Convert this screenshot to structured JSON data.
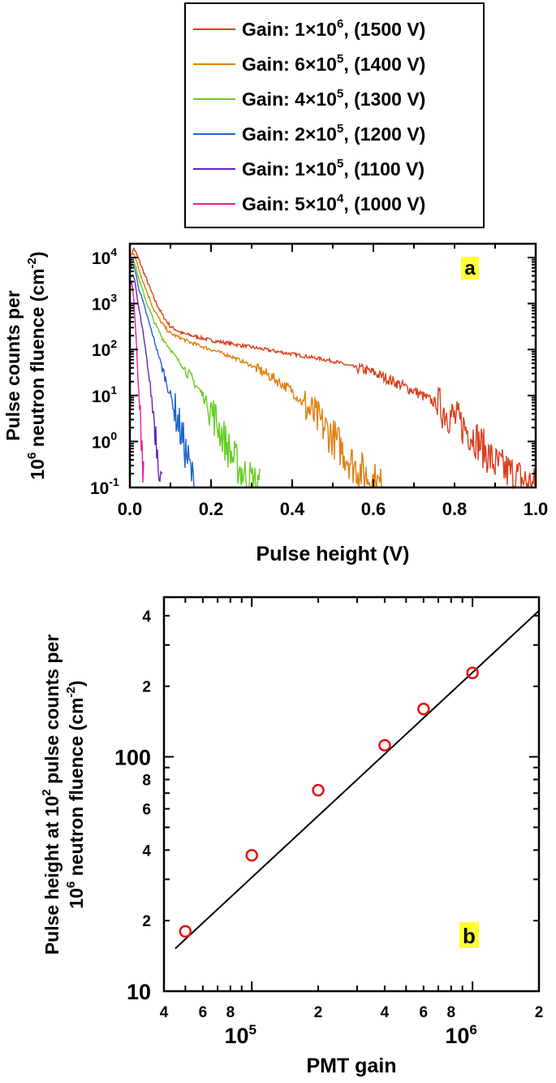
{
  "chart_data": [
    {
      "panel": "a",
      "type": "line",
      "xlabel": "Pulse height (V)",
      "ylabel_line1": "Pulse counts per",
      "ylabel_line2_base": "10",
      "ylabel_line2_sup": "6",
      "ylabel_line2_rest": " neutron fluence (cm",
      "ylabel_line2_sup2": "-2",
      "ylabel_line2_end": ")",
      "xlim": [
        0.0,
        1.0
      ],
      "ylim_log10": [
        -1,
        4.3
      ],
      "yscale": "log",
      "x_ticks": [
        {
          "value": 0.0,
          "label": "0.0"
        },
        {
          "value": 0.2,
          "label": "0.2"
        },
        {
          "value": 0.4,
          "label": "0.4"
        },
        {
          "value": 0.6,
          "label": "0.6"
        },
        {
          "value": 0.8,
          "label": "0.8"
        },
        {
          "value": 1.0,
          "label": "1.0"
        }
      ],
      "y_ticks": [
        {
          "exp": 4,
          "base": "10",
          "sup": "4"
        },
        {
          "exp": 3,
          "base": "10",
          "sup": "3"
        },
        {
          "exp": 2,
          "base": "10",
          "sup": "2"
        },
        {
          "exp": 1,
          "base": "10",
          "sup": "1"
        },
        {
          "exp": 0,
          "base": "10",
          "sup": "0"
        },
        {
          "exp": -1,
          "base": "10",
          "sup": "-1"
        }
      ],
      "legend_position": "top, above plot",
      "series": [
        {
          "name": "Gain: 1×10^6, (1500 V)",
          "label_pre": "Gain: 1×10",
          "label_sup": "6",
          "label_post": ", (1500 V)",
          "color": "#d8401e",
          "points": [
            [
              0.0,
              4.0
            ],
            [
              0.01,
              4.2
            ],
            [
              0.02,
              4.0
            ],
            [
              0.04,
              3.55
            ],
            [
              0.06,
              3.1
            ],
            [
              0.08,
              2.75
            ],
            [
              0.1,
              2.5
            ],
            [
              0.13,
              2.35
            ],
            [
              0.2,
              2.2
            ],
            [
              0.3,
              2.05
            ],
            [
              0.4,
              1.9
            ],
            [
              0.5,
              1.75
            ],
            [
              0.6,
              1.5
            ],
            [
              0.7,
              1.1
            ],
            [
              0.75,
              0.85
            ],
            [
              0.8,
              0.5
            ],
            [
              0.85,
              0.1
            ],
            [
              0.9,
              -0.5
            ],
            [
              1.0,
              -1.0
            ]
          ]
        },
        {
          "name": "Gain: 6×10^5, (1400 V)",
          "label_pre": "Gain: 6×10",
          "label_sup": "5",
          "label_post": ", (1400 V)",
          "color": "#e08010",
          "points": [
            [
              0.0,
              4.05
            ],
            [
              0.01,
              4.1
            ],
            [
              0.02,
              3.8
            ],
            [
              0.04,
              3.3
            ],
            [
              0.06,
              2.85
            ],
            [
              0.08,
              2.55
            ],
            [
              0.1,
              2.35
            ],
            [
              0.15,
              2.15
            ],
            [
              0.2,
              2.0
            ],
            [
              0.25,
              1.85
            ],
            [
              0.3,
              1.65
            ],
            [
              0.35,
              1.4
            ],
            [
              0.4,
              1.1
            ],
            [
              0.45,
              0.6
            ],
            [
              0.5,
              0.1
            ],
            [
              0.55,
              -0.5
            ],
            [
              0.62,
              -1.0
            ]
          ]
        },
        {
          "name": "Gain: 4×10^5, (1300 V)",
          "label_pre": "Gain: 4×10",
          "label_sup": "5",
          "label_post": ", (1300 V)",
          "color": "#66cc22",
          "points": [
            [
              0.0,
              3.85
            ],
            [
              0.01,
              3.95
            ],
            [
              0.02,
              3.6
            ],
            [
              0.04,
              3.05
            ],
            [
              0.06,
              2.6
            ],
            [
              0.08,
              2.25
            ],
            [
              0.1,
              2.0
            ],
            [
              0.12,
              1.75
            ],
            [
              0.15,
              1.4
            ],
            [
              0.18,
              1.0
            ],
            [
              0.2,
              0.7
            ],
            [
              0.22,
              0.3
            ],
            [
              0.25,
              -0.3
            ],
            [
              0.28,
              -0.7
            ],
            [
              0.32,
              -1.0
            ]
          ]
        },
        {
          "name": "Gain: 2×10^5, (1200 V)",
          "label_pre": "Gain: 2×10",
          "label_sup": "5",
          "label_post": ", (1200 V)",
          "color": "#1e64d2",
          "points": [
            [
              0.0,
              3.75
            ],
            [
              0.01,
              3.85
            ],
            [
              0.02,
              3.4
            ],
            [
              0.04,
              2.8
            ],
            [
              0.06,
              2.2
            ],
            [
              0.08,
              1.6
            ],
            [
              0.1,
              1.0
            ],
            [
              0.12,
              0.4
            ],
            [
              0.14,
              -0.3
            ],
            [
              0.16,
              -1.0
            ]
          ]
        },
        {
          "name": "Gain: 1×10^5, (1100 V)",
          "label_pre": "Gain: 1×10",
          "label_sup": "5",
          "label_post": ", (1100 V)",
          "color": "#6622bb",
          "points": [
            [
              0.0,
              3.6
            ],
            [
              0.01,
              3.6
            ],
            [
              0.02,
              3.0
            ],
            [
              0.03,
              2.5
            ],
            [
              0.04,
              1.9
            ],
            [
              0.05,
              1.2
            ],
            [
              0.06,
              0.5
            ],
            [
              0.07,
              -0.3
            ],
            [
              0.08,
              -1.0
            ]
          ]
        },
        {
          "name": "Gain: 5×10^4, (1000 V)",
          "label_pre": "Gain: 5×10",
          "label_sup": "4",
          "label_post": ", (1000 V)",
          "color": "#e0209a",
          "points": [
            [
              0.0,
              3.4
            ],
            [
              0.005,
              3.5
            ],
            [
              0.01,
              3.0
            ],
            [
              0.015,
              2.3
            ],
            [
              0.02,
              1.4
            ],
            [
              0.025,
              0.5
            ],
            [
              0.03,
              -0.3
            ],
            [
              0.035,
              -1.0
            ]
          ]
        }
      ],
      "annotation": "a"
    },
    {
      "panel": "b",
      "type": "scatter",
      "xscale": "log",
      "yscale": "log",
      "xlim": [
        40000,
        2000000
      ],
      "ylim": [
        10,
        480
      ],
      "xlabel": "PMT gain",
      "ylabel_line1_pre": "Pulse height at 10",
      "ylabel_line1_sup": "2",
      "ylabel_line1_post": " pulse counts per",
      "ylabel_line2_base": "10",
      "ylabel_line2_sup": "6",
      "ylabel_line2_rest": " neutron fluence (cm",
      "ylabel_line2_sup2": "-2",
      "ylabel_line2_end": ")",
      "x_minor_labels": [
        {
          "value": 40000,
          "label": "4"
        },
        {
          "value": 60000,
          "label": "6"
        },
        {
          "value": 80000,
          "label": "8"
        },
        {
          "value": 200000,
          "label": "2"
        },
        {
          "value": 400000,
          "label": "4"
        },
        {
          "value": 600000,
          "label": "6"
        },
        {
          "value": 800000,
          "label": "8"
        },
        {
          "value": 2000000,
          "label": "2"
        }
      ],
      "x_major_labels": [
        {
          "value": 100000,
          "base": "10",
          "sup": "5"
        },
        {
          "value": 1000000,
          "base": "10",
          "sup": "6"
        }
      ],
      "y_minor_labels": [
        {
          "value": 20,
          "label": "2"
        },
        {
          "value": 40,
          "label": "4"
        },
        {
          "value": 60,
          "label": "6"
        },
        {
          "value": 80,
          "label": "8"
        },
        {
          "value": 200,
          "label": "2"
        },
        {
          "value": 400,
          "label": "4"
        }
      ],
      "y_major_labels": [
        {
          "value": 10,
          "label": "10"
        },
        {
          "value": 100,
          "label": "100"
        }
      ],
      "points": [
        {
          "x": 50000,
          "y": 18
        },
        {
          "x": 100000,
          "y": 38
        },
        {
          "x": 200000,
          "y": 72
        },
        {
          "x": 400000,
          "y": 112
        },
        {
          "x": 600000,
          "y": 160
        },
        {
          "x": 1000000,
          "y": 228
        }
      ],
      "marker_color": "#e81010",
      "fit_line": {
        "x": [
          45000,
          2000000
        ],
        "y": [
          15.2,
          420
        ],
        "color": "#000000"
      },
      "annotation": "b"
    }
  ]
}
